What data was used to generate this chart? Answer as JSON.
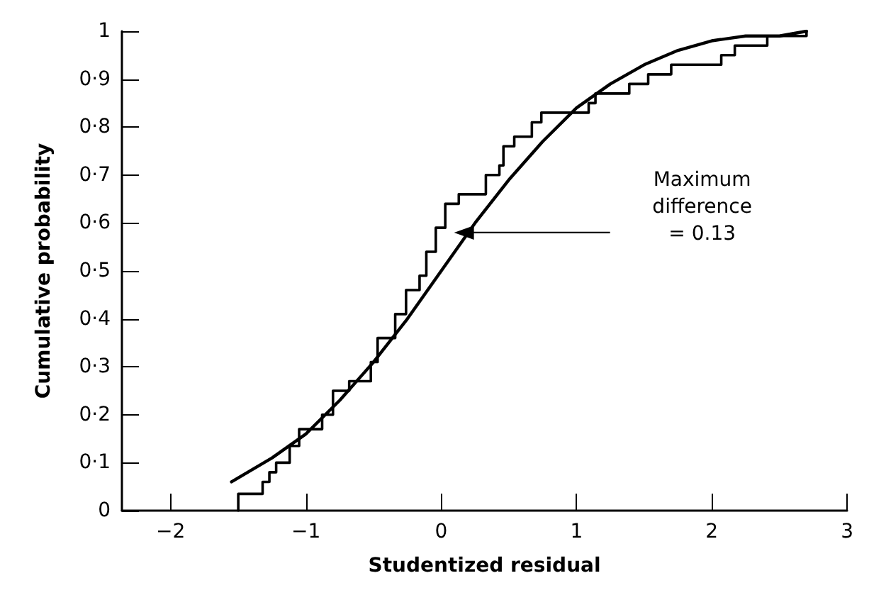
{
  "chart_data": {
    "type": "line",
    "xlabel": "Studentized residual",
    "ylabel": "Cumulative probability",
    "xlim": [
      -2.36,
      3
    ],
    "ylim": [
      0,
      1
    ],
    "xticks": [
      {
        "value": -2,
        "label": "−2"
      },
      {
        "value": -1,
        "label": "−1"
      },
      0,
      1,
      2,
      3
    ],
    "yticks": [
      0,
      {
        "value": 0.1,
        "label": "0·1"
      },
      {
        "value": 0.2,
        "label": "0·2"
      },
      {
        "value": 0.3,
        "label": "0·3"
      },
      {
        "value": 0.4,
        "label": "0·4"
      },
      {
        "value": 0.5,
        "label": "0·5"
      },
      {
        "value": 0.6,
        "label": "0·6"
      },
      {
        "value": 0.7,
        "label": "0·7"
      },
      {
        "value": 0.8,
        "label": "0·8"
      },
      {
        "value": 0.9,
        "label": "0·9"
      },
      1
    ],
    "grid": false,
    "marker": "none",
    "line_style": "solid",
    "series": [
      {
        "color": "#000000",
        "x": [
          -1.55,
          -1.25,
          -1,
          -0.75,
          -0.5,
          -0.25,
          0,
          0.25,
          0.5,
          0.75,
          1,
          1.25,
          1.5,
          1.75,
          2,
          2.25,
          2.5,
          2.7
        ],
        "values": [
          0.06,
          0.11,
          0.16,
          0.23,
          0.31,
          0.4,
          0.5,
          0.6,
          0.69,
          0.77,
          0.84,
          0.89,
          0.93,
          0.96,
          0.98,
          0.99,
          0.99,
          1.0
        ]
      },
      {
        "type": "step",
        "color": "#000000",
        "x": [
          -1.5,
          -1.5,
          -1.32,
          -1.27,
          -1.22,
          -1.12,
          -1.05,
          -0.88,
          -0.8,
          -0.68,
          -0.52,
          -0.47,
          -0.34,
          -0.26,
          -0.16,
          -0.11,
          -0.04,
          0.03,
          0.13,
          0.33,
          0.43,
          0.46,
          0.54,
          0.67,
          0.74,
          1.09,
          1.14,
          1.39,
          1.53,
          1.7,
          2.07,
          2.17,
          2.41,
          2.7
        ],
        "values": [
          0,
          0.035,
          0.06,
          0.08,
          0.1,
          0.135,
          0.17,
          0.2,
          0.25,
          0.27,
          0.31,
          0.36,
          0.41,
          0.46,
          0.49,
          0.54,
          0.59,
          0.64,
          0.66,
          0.7,
          0.72,
          0.76,
          0.78,
          0.81,
          0.83,
          0.85,
          0.87,
          0.89,
          0.91,
          0.93,
          0.95,
          0.97,
          0.99,
          1.0
        ]
      }
    ],
    "annotations": [
      "Maximum\ndifference\n= 0.13"
    ]
  }
}
